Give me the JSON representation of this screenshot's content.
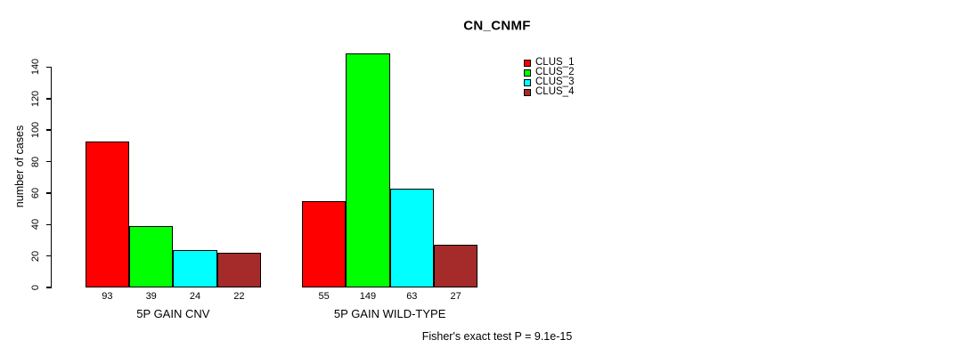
{
  "chart_data": {
    "type": "bar",
    "title": "CN_CNMF",
    "xlabel": "",
    "ylabel": "number of cases",
    "ylim": [
      0,
      140
    ],
    "yticks": [
      0,
      20,
      40,
      60,
      80,
      100,
      120,
      140
    ],
    "grid": false,
    "legend_position": "top-right-outside",
    "categories": [
      "5P GAIN CNV",
      "5P GAIN WILD-TYPE"
    ],
    "series": [
      {
        "name": "CLUS_1",
        "color": "#ff0000",
        "values": [
          93,
          55
        ]
      },
      {
        "name": "CLUS_2",
        "color": "#00ff00",
        "values": [
          39,
          149
        ]
      },
      {
        "name": "CLUS_3",
        "color": "#00ffff",
        "values": [
          24,
          63
        ]
      },
      {
        "name": "CLUS_4",
        "color": "#a52a2a",
        "values": [
          22,
          27
        ]
      }
    ],
    "bar_value_labels": [
      [
        93,
        39,
        24,
        22
      ],
      [
        55,
        149,
        63,
        27
      ]
    ],
    "annotation": "Fisher's exact test P = 9.1e-15"
  },
  "colors": {
    "background": "#ffffff",
    "text": "#000000",
    "bar_border": "#000000",
    "axis": "#000000"
  }
}
